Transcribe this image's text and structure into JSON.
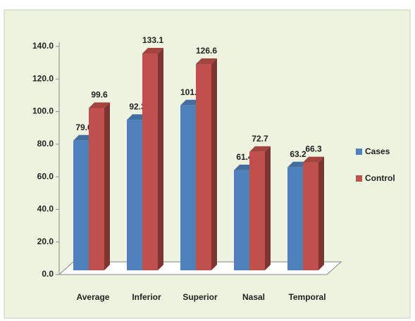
{
  "chart_data": {
    "type": "bar3d",
    "categories": [
      "Average",
      "Inferior",
      "Superior",
      "Nasal",
      "Temporal"
    ],
    "series": [
      {
        "name": "Cases",
        "color": "#4f81bd",
        "values": [
          79.6,
          92.3,
          101.2,
          61.4,
          63.2
        ]
      },
      {
        "name": "Control",
        "color": "#c0504d",
        "values": [
          99.6,
          133.1,
          126.6,
          72.7,
          66.3
        ]
      }
    ],
    "ylim": [
      0,
      140
    ],
    "yticks": [
      {
        "value": 0,
        "label": "0.0"
      },
      {
        "value": 20,
        "label": "20.0"
      },
      {
        "value": 40,
        "label": "40.0"
      },
      {
        "value": 60,
        "label": "60.0"
      },
      {
        "value": 80,
        "label": "80.0"
      },
      {
        "value": 100,
        "label": "100.0"
      },
      {
        "value": 120,
        "label": "120.0"
      },
      {
        "value": 140,
        "label": "140.0"
      }
    ],
    "legend": "right"
  }
}
